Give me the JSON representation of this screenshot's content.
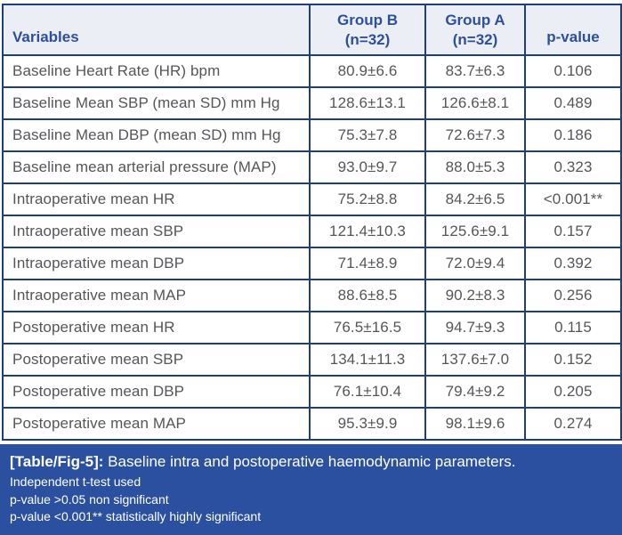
{
  "colors": {
    "border_navy": "#1e3f7f",
    "header_background": "#eceef6",
    "header_text": "#2d4f9e",
    "body_text": "#55565a",
    "footer_background": "#2a509f",
    "footer_text": "#ffffff"
  },
  "table": {
    "columns": [
      {
        "line1": "Variables",
        "line2": ""
      },
      {
        "line1": "Group B",
        "line2": "(n=32)"
      },
      {
        "line1": "Group A",
        "line2": "(n=32)"
      },
      {
        "line1": "p-value",
        "line2": ""
      }
    ],
    "rows": [
      [
        "Baseline Heart Rate (HR) bpm",
        "80.9±6.6",
        "83.7±6.3",
        "0.106"
      ],
      [
        "Baseline Mean SBP (mean SD) mm Hg",
        "128.6±13.1",
        "126.6±8.1",
        "0.489"
      ],
      [
        "Baseline Mean DBP (mean SD) mm Hg",
        "75.3±7.8",
        "72.6±7.3",
        "0.186"
      ],
      [
        "Baseline mean arterial pressure (MAP)",
        "93.0±9.7",
        "88.0±5.3",
        "0.323"
      ],
      [
        "Intraoperative mean HR",
        "75.2±8.8",
        "84.2±6.5",
        "<0.001**"
      ],
      [
        "Intraoperative mean SBP",
        "121.4±10.3",
        "125.6±9.1",
        "0.157"
      ],
      [
        "Intraoperative mean DBP",
        "71.4±8.9",
        "72.0±9.4",
        "0.392"
      ],
      [
        "Intraoperative mean MAP",
        "88.6±8.5",
        "90.2±8.3",
        "0.256"
      ],
      [
        "Postoperative mean HR",
        "76.5±16.5",
        "94.7±9.3",
        "0.115"
      ],
      [
        "Postoperative mean SBP",
        "134.1±11.3",
        "137.6±7.0",
        "0.152"
      ],
      [
        "Postoperative mean DBP",
        "76.1±10.4",
        "79.4±9.2",
        "0.205"
      ],
      [
        "Postoperative mean MAP",
        "95.3±9.9",
        "98.1±9.6",
        "0.274"
      ]
    ]
  },
  "footer": {
    "caption_label": "[Table/Fig-5]:",
    "caption_text": " Baseline intra and postoperative haemodynamic parameters.",
    "notes": [
      "Independent t-test used",
      "p-value >0.05 non significant",
      "p-value <0.001** statistically highly significant"
    ]
  }
}
